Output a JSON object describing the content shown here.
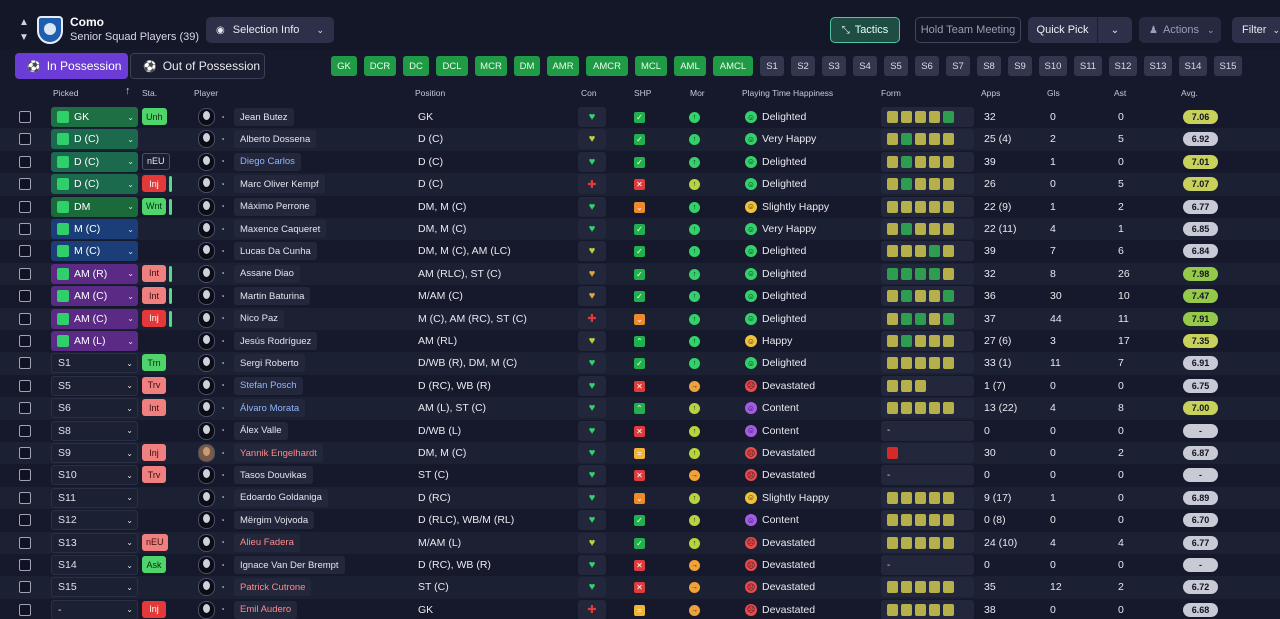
{
  "header": {
    "club_name": "Como",
    "club_subtitle": "Senior Squad Players (39)",
    "selection_info": "Selection Info",
    "tactics": "Tactics",
    "hold_meeting": "Hold Team Meeting",
    "quick_pick": "Quick Pick",
    "actions": "Actions",
    "filter": "Filter"
  },
  "tabs": {
    "in_possession": "In Possession",
    "out_possession": "Out of Possession"
  },
  "position_chips": [
    {
      "label": "GK",
      "state": "green"
    },
    {
      "label": "DCR",
      "state": "green"
    },
    {
      "label": "DC",
      "state": "green"
    },
    {
      "label": "DCL",
      "state": "green"
    },
    {
      "label": "MCR",
      "state": "green"
    },
    {
      "label": "DM",
      "state": "green"
    },
    {
      "label": "AMR",
      "state": "green"
    },
    {
      "label": "AMCR",
      "state": "green"
    },
    {
      "label": "MCL",
      "state": "green"
    },
    {
      "label": "AML",
      "state": "green"
    },
    {
      "label": "AMCL",
      "state": "green"
    },
    {
      "label": "S1",
      "state": "grey"
    },
    {
      "label": "S2",
      "state": "grey"
    },
    {
      "label": "S3",
      "state": "grey"
    },
    {
      "label": "S4",
      "state": "grey"
    },
    {
      "label": "S5",
      "state": "grey"
    },
    {
      "label": "S6",
      "state": "grey"
    },
    {
      "label": "S7",
      "state": "grey"
    },
    {
      "label": "S8",
      "state": "grey"
    },
    {
      "label": "S9",
      "state": "grey"
    },
    {
      "label": "S10",
      "state": "grey"
    },
    {
      "label": "S11",
      "state": "grey"
    },
    {
      "label": "S12",
      "state": "grey"
    },
    {
      "label": "S13",
      "state": "grey"
    },
    {
      "label": "S14",
      "state": "grey"
    },
    {
      "label": "S15",
      "state": "grey"
    }
  ],
  "columns": {
    "picked": "Picked",
    "status": "Sta.",
    "player": "Player",
    "position": "Position",
    "con": "Con",
    "shp": "SHP",
    "mor": "Mor",
    "playing_time": "Playing Time Happiness",
    "form": "Form",
    "apps": "Apps",
    "gls": "Gls",
    "ast": "Ast",
    "avg": "Avg."
  },
  "colors": {
    "gk": "#1f6f45",
    "def": "#1b6a4e",
    "dm": "#1b6a3c",
    "mid": "#1c3e78",
    "am": "#5a2a85",
    "form_yellow": "#b6b04a",
    "form_green": "#2e9d4f",
    "form_red": "#d62a2a",
    "avg_yellow": "#c8d25a",
    "avg_green": "#95c94a",
    "avg_grey": "#c8cad6"
  },
  "players": [
    {
      "picked": "GK",
      "pick_style": "gk",
      "status": "Unh",
      "status_style": "green",
      "name": "Jean Butez",
      "name_style": "",
      "photo": false,
      "position": "GK",
      "con": "heart",
      "shp": "check",
      "mor": "up",
      "hap_icon": "smile",
      "happiness": "Delighted",
      "form": "yyyyg",
      "apps": "32",
      "gls": "0",
      "ast": "0",
      "avg": "7.06",
      "avg_style": "yellow"
    },
    {
      "picked": "D (C)",
      "pick_style": "def",
      "status": "",
      "status_style": "",
      "name": "Alberto Dossena",
      "name_style": "",
      "photo": false,
      "position": "D (C)",
      "con": "heart-y",
      "shp": "check",
      "mor": "up",
      "hap_icon": "smile",
      "happiness": "Very Happy",
      "form": "ygyyy",
      "apps": "25 (4)",
      "gls": "2",
      "ast": "5",
      "avg": "6.92",
      "avg_style": "grey"
    },
    {
      "picked": "D (C)",
      "pick_style": "def",
      "status": "nEU",
      "status_style": "dark",
      "name": "Diego Carlos",
      "name_style": "link",
      "photo": false,
      "position": "D (C)",
      "con": "heart",
      "shp": "check",
      "mor": "up",
      "hap_icon": "smile",
      "happiness": "Delighted",
      "form": "ygyyy",
      "apps": "39",
      "gls": "1",
      "ast": "0",
      "avg": "7.01",
      "avg_style": "yellow"
    },
    {
      "picked": "D (C)",
      "pick_style": "def",
      "status": "Inj",
      "status_style": "red",
      "name": "Marc Oliver Kempf",
      "name_style": "",
      "photo": false,
      "position": "D (C)",
      "con": "cross",
      "shp": "x",
      "mor": "up-y",
      "hap_icon": "smile",
      "happiness": "Delighted",
      "form": "ygyyy",
      "apps": "26",
      "gls": "0",
      "ast": "5",
      "avg": "7.07",
      "avg_style": "yellow"
    },
    {
      "picked": "DM",
      "pick_style": "dm",
      "status": "Wnt",
      "status_style": "green",
      "name": "Máximo Perrone",
      "name_style": "",
      "photo": false,
      "position": "DM, M (C)",
      "con": "heart",
      "shp": "dn",
      "mor": "up",
      "hap_icon": "meh",
      "happiness": "Slightly Happy",
      "form": "yyyyy",
      "apps": "22 (9)",
      "gls": "1",
      "ast": "2",
      "avg": "6.77",
      "avg_style": "grey"
    },
    {
      "picked": "M (C)",
      "pick_style": "mid",
      "status": "",
      "status_style": "",
      "name": "Maxence Caqueret",
      "name_style": "",
      "photo": false,
      "position": "DM, M (C)",
      "con": "heart",
      "shp": "check",
      "mor": "up",
      "hap_icon": "smile",
      "happiness": "Very Happy",
      "form": "ygyyy",
      "apps": "22 (11)",
      "gls": "4",
      "ast": "1",
      "avg": "6.85",
      "avg_style": "grey"
    },
    {
      "picked": "M (C)",
      "pick_style": "mid",
      "status": "",
      "status_style": "",
      "name": "Lucas Da Cunha",
      "name_style": "",
      "photo": false,
      "position": "DM, M (C), AM (LC)",
      "con": "heart-y",
      "shp": "check",
      "mor": "up",
      "hap_icon": "smile",
      "happiness": "Delighted",
      "form": "yyygy",
      "apps": "39",
      "gls": "7",
      "ast": "6",
      "avg": "6.84",
      "avg_style": "grey"
    },
    {
      "picked": "AM (R)",
      "pick_style": "am",
      "status": "Int",
      "status_style": "pink",
      "name": "Assane Diao",
      "name_style": "",
      "photo": false,
      "position": "AM (RLC), ST (C)",
      "con": "heart-o",
      "shp": "check",
      "mor": "up",
      "hap_icon": "smile",
      "happiness": "Delighted",
      "form": "ggggy",
      "apps": "32",
      "gls": "8",
      "ast": "26",
      "avg": "7.98",
      "avg_style": "green"
    },
    {
      "picked": "AM (C)",
      "pick_style": "am",
      "status": "Int",
      "status_style": "pink",
      "name": "Martin Baturina",
      "name_style": "",
      "photo": false,
      "position": "M/AM (C)",
      "con": "heart-o",
      "shp": "check",
      "mor": "up",
      "hap_icon": "smile",
      "happiness": "Delighted",
      "form": "ygyyg",
      "apps": "36",
      "gls": "30",
      "ast": "10",
      "avg": "7.47",
      "avg_style": "green"
    },
    {
      "picked": "AM (C)",
      "pick_style": "am",
      "status": "Inj",
      "status_style": "red",
      "name": "Nico Paz",
      "name_style": "",
      "photo": false,
      "position": "M (C), AM (RC), ST (C)",
      "con": "cross",
      "shp": "dn",
      "mor": "up",
      "hap_icon": "smile",
      "happiness": "Delighted",
      "form": "yggyg",
      "apps": "37",
      "gls": "44",
      "ast": "11",
      "avg": "7.91",
      "avg_style": "green"
    },
    {
      "picked": "AM (L)",
      "pick_style": "am",
      "status": "",
      "status_style": "",
      "name": "Jesús Rodríguez",
      "name_style": "",
      "photo": false,
      "position": "AM (RL)",
      "con": "heart-y",
      "shp": "up2",
      "mor": "up",
      "hap_icon": "meh",
      "happiness": "Happy",
      "form": "ygyyy",
      "apps": "27 (6)",
      "gls": "3",
      "ast": "17",
      "avg": "7.35",
      "avg_style": "yellow"
    },
    {
      "picked": "S1",
      "pick_style": "none",
      "status": "Trn",
      "status_style": "green",
      "name": "Sergi Roberto",
      "name_style": "",
      "photo": false,
      "position": "D/WB (R), DM, M (C)",
      "con": "heart",
      "shp": "check",
      "mor": "up",
      "hap_icon": "smile",
      "happiness": "Delighted",
      "form": "yyyyy",
      "apps": "33 (1)",
      "gls": "11",
      "ast": "7",
      "avg": "6.91",
      "avg_style": "grey"
    },
    {
      "picked": "S5",
      "pick_style": "none",
      "status": "Trv",
      "status_style": "pink",
      "name": "Stefan Posch",
      "name_style": "link",
      "photo": false,
      "position": "D (RC), WB (R)",
      "con": "heart",
      "shp": "x",
      "mor": "right",
      "hap_icon": "sad",
      "happiness": "Devastated",
      "form": "yyy",
      "apps": "1 (7)",
      "gls": "0",
      "ast": "0",
      "avg": "6.75",
      "avg_style": "grey"
    },
    {
      "picked": "S6",
      "pick_style": "none",
      "status": "Int",
      "status_style": "pink",
      "name": "Álvaro Morata",
      "name_style": "link",
      "photo": false,
      "position": "AM (L), ST (C)",
      "con": "heart",
      "shp": "up2",
      "mor": "up-y",
      "hap_icon": "content",
      "happiness": "Content",
      "form": "yyyyy",
      "apps": "13 (22)",
      "gls": "4",
      "ast": "8",
      "avg": "7.00",
      "avg_style": "yellow"
    },
    {
      "picked": "S8",
      "pick_style": "none",
      "status": "",
      "status_style": "",
      "name": "Álex Valle",
      "name_style": "",
      "photo": false,
      "position": "D/WB (L)",
      "con": "heart",
      "shp": "x",
      "mor": "up-y",
      "hap_icon": "content",
      "happiness": "Content",
      "form": "-",
      "apps": "0",
      "gls": "0",
      "ast": "0",
      "avg": "-",
      "avg_style": "grey"
    },
    {
      "picked": "S9",
      "pick_style": "none",
      "status": "Inj",
      "status_style": "pink",
      "name": "Yannik Engelhardt",
      "name_style": "red",
      "photo": true,
      "position": "DM, M (C)",
      "con": "heart",
      "shp": "eq",
      "mor": "up-y",
      "hap_icon": "sad",
      "happiness": "Devastated",
      "form": "r",
      "apps": "30",
      "gls": "0",
      "ast": "2",
      "avg": "6.87",
      "avg_style": "grey"
    },
    {
      "picked": "S10",
      "pick_style": "none",
      "status": "Trv",
      "status_style": "pink",
      "name": "Tasos Douvikas",
      "name_style": "",
      "photo": false,
      "position": "ST (C)",
      "con": "heart",
      "shp": "x",
      "mor": "right",
      "hap_icon": "sad",
      "happiness": "Devastated",
      "form": "-",
      "apps": "0",
      "gls": "0",
      "ast": "0",
      "avg": "-",
      "avg_style": "grey"
    },
    {
      "picked": "S11",
      "pick_style": "none",
      "status": "",
      "status_style": "",
      "name": "Edoardo Goldaniga",
      "name_style": "",
      "photo": false,
      "position": "D (RC)",
      "con": "heart",
      "shp": "dn2",
      "mor": "up-y",
      "hap_icon": "meh",
      "happiness": "Slightly Happy",
      "form": "yyyyy",
      "apps": "9 (17)",
      "gls": "1",
      "ast": "0",
      "avg": "6.89",
      "avg_style": "grey"
    },
    {
      "picked": "S12",
      "pick_style": "none",
      "status": "",
      "status_style": "",
      "name": "Mërgim Vojvoda",
      "name_style": "",
      "photo": false,
      "position": "D (RLC), WB/M (RL)",
      "con": "heart",
      "shp": "check",
      "mor": "up-y",
      "hap_icon": "content",
      "happiness": "Content",
      "form": "yyyyy",
      "apps": "0 (8)",
      "gls": "0",
      "ast": "0",
      "avg": "6.70",
      "avg_style": "grey"
    },
    {
      "picked": "S13",
      "pick_style": "none",
      "status": "nEU",
      "status_style": "pink",
      "name": "Alieu Fadera",
      "name_style": "red",
      "photo": false,
      "position": "M/AM (L)",
      "con": "heart-y",
      "shp": "check",
      "mor": "up-y",
      "hap_icon": "sad",
      "happiness": "Devastated",
      "form": "yyyyy",
      "apps": "24 (10)",
      "gls": "4",
      "ast": "4",
      "avg": "6.77",
      "avg_style": "grey"
    },
    {
      "picked": "S14",
      "pick_style": "none",
      "status": "Ask",
      "status_style": "green",
      "name": "Ignace Van Der Brempt",
      "name_style": "",
      "photo": false,
      "position": "D (RC), WB (R)",
      "con": "heart",
      "shp": "x",
      "mor": "right",
      "hap_icon": "sad",
      "happiness": "Devastated",
      "form": "-",
      "apps": "0",
      "gls": "0",
      "ast": "0",
      "avg": "-",
      "avg_style": "grey"
    },
    {
      "picked": "S15",
      "pick_style": "none",
      "status": "",
      "status_style": "",
      "name": "Patrick Cutrone",
      "name_style": "red",
      "photo": false,
      "position": "ST (C)",
      "con": "heart",
      "shp": "x",
      "mor": "right",
      "hap_icon": "sad",
      "happiness": "Devastated",
      "form": "yyyyy",
      "apps": "35",
      "gls": "12",
      "ast": "2",
      "avg": "6.72",
      "avg_style": "grey"
    },
    {
      "picked": "-",
      "pick_style": "none",
      "status": "Inj",
      "status_style": "red",
      "name": "Emil Audero",
      "name_style": "red",
      "photo": false,
      "position": "GK",
      "con": "cross",
      "shp": "eq",
      "mor": "right",
      "hap_icon": "sad",
      "happiness": "Devastated",
      "form": "yyyyy",
      "apps": "38",
      "gls": "0",
      "ast": "0",
      "avg": "6.68",
      "avg_style": "grey"
    }
  ]
}
